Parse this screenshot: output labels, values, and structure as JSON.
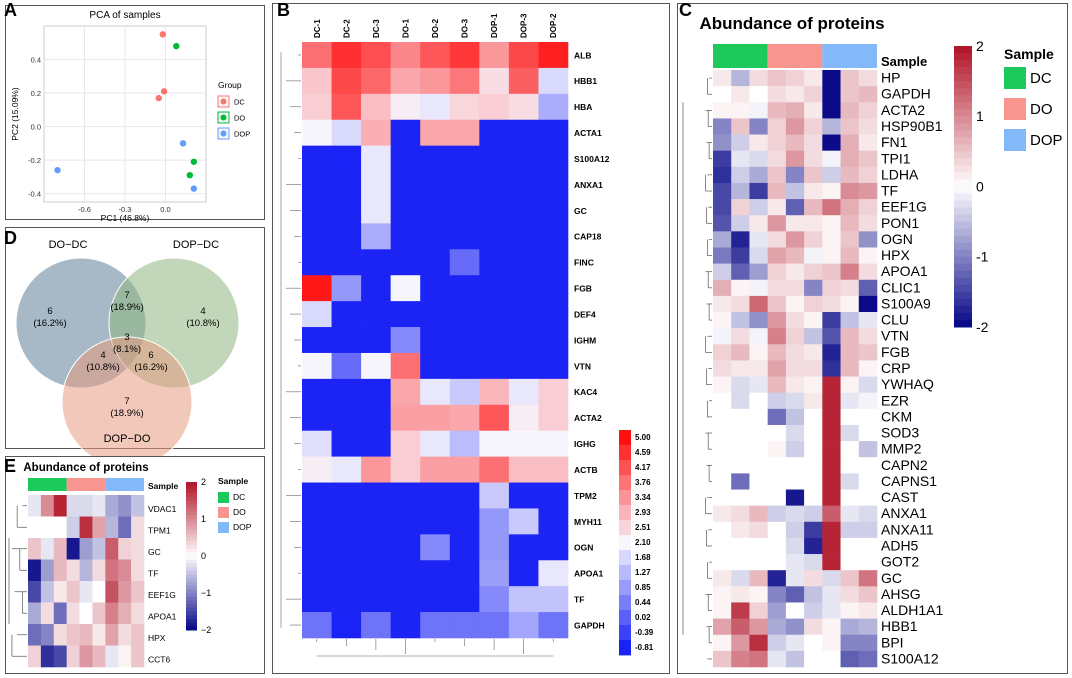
{
  "panel_labels": {
    "a": "A",
    "b": "B",
    "c": "C",
    "d": "D",
    "e": "E"
  },
  "chart_data": [
    {
      "id": "A",
      "type": "scatter",
      "title": "PCA of samples",
      "xlabel": "PC1 (46.8%)",
      "ylabel": "PC2 (15.09%)",
      "xlim": [
        -0.9,
        0.3
      ],
      "ylim": [
        -0.45,
        0.6
      ],
      "xticks": [
        -0.6,
        -0.3,
        0.0
      ],
      "xtick_labels": [
        "-0.6",
        "-0.3",
        "0.0"
      ],
      "yticks": [
        -0.4,
        -0.2,
        0.0,
        0.2,
        0.4
      ],
      "ytick_labels": [
        "-0.4",
        "-0.2",
        "0.0",
        "0.2",
        "0.4"
      ],
      "legend_title": "Group",
      "series": [
        {
          "name": "DC",
          "color": "#f8766d",
          "points": [
            [
              -0.02,
              0.55
            ],
            [
              -0.01,
              0.21
            ],
            [
              -0.05,
              0.17
            ]
          ]
        },
        {
          "name": "DO",
          "color": "#00ba38",
          "points": [
            [
              0.08,
              0.48
            ],
            [
              0.21,
              -0.21
            ],
            [
              0.18,
              -0.29
            ]
          ]
        },
        {
          "name": "DOP",
          "color": "#619cff",
          "points": [
            [
              0.13,
              -0.1
            ],
            [
              0.21,
              -0.37
            ],
            [
              -0.8,
              -0.26
            ]
          ]
        }
      ]
    },
    {
      "id": "B",
      "type": "heatmap",
      "columns": [
        "DC-1",
        "DC-2",
        "DC-3",
        "DO-1",
        "DO-2",
        "DO-3",
        "DOP-1",
        "DOP-3",
        "DOP-2"
      ],
      "rows": [
        "ALB",
        "HBB1",
        "HBA",
        "ACTA1",
        "S100A12",
        "ANXA1",
        "GC",
        "CAP18",
        "FINC",
        "FGB",
        "DEF4",
        "IGHM",
        "VTN",
        "KAC4",
        "ACTA2",
        "IGHG",
        "ACTB",
        "TPM2",
        "MYH11",
        "OGN",
        "APOA1",
        "TF",
        "GAPDH"
      ],
      "values": [
        [
          3.8,
          4.6,
          4.2,
          3.5,
          4.1,
          4.5,
          3.3,
          4.3,
          4.8
        ],
        [
          2.7,
          4.3,
          3.9,
          3.1,
          3.3,
          3.7,
          2.4,
          4.0,
          1.7
        ],
        [
          2.6,
          4.1,
          2.8,
          2.2,
          1.9,
          2.5,
          2.6,
          2.4,
          1.1
        ],
        [
          2.1,
          1.7,
          3.0,
          -0.8,
          3.1,
          3.1,
          -0.8,
          -0.8,
          -0.8
        ],
        [
          -0.8,
          -0.9,
          1.9,
          -0.8,
          -0.8,
          -0.8,
          -0.8,
          -0.8,
          -0.8
        ],
        [
          -0.8,
          -0.8,
          1.9,
          -0.8,
          -0.8,
          -0.8,
          -0.8,
          -0.8,
          -0.8
        ],
        [
          -0.8,
          -0.8,
          1.9,
          -0.8,
          -0.8,
          -0.8,
          -0.8,
          -0.8,
          -0.8
        ],
        [
          -0.8,
          -0.8,
          1.1,
          -0.8,
          -0.8,
          -0.8,
          -0.8,
          -0.8,
          -0.8
        ],
        [
          -0.8,
          -0.8,
          -0.8,
          -0.8,
          -0.8,
          0.2,
          -0.8,
          -0.8,
          -0.8
        ],
        [
          4.9,
          0.8,
          -0.8,
          2.1,
          -0.8,
          -0.8,
          -0.8,
          -0.8,
          -0.8
        ],
        [
          1.7,
          -0.8,
          -0.8,
          -0.8,
          -0.8,
          -0.8,
          -0.8,
          -0.8,
          -0.8
        ],
        [
          -0.8,
          -0.8,
          -0.8,
          0.6,
          -0.8,
          -0.8,
          -0.8,
          -0.8,
          -0.8
        ],
        [
          2.1,
          0.2,
          2.1,
          3.8,
          -0.8,
          -0.8,
          -0.8,
          -0.8,
          -0.8
        ],
        [
          -0.8,
          -0.8,
          -0.8,
          3.1,
          1.9,
          1.5,
          2.9,
          1.9,
          2.6
        ],
        [
          -0.8,
          -0.8,
          -0.8,
          3.2,
          3.2,
          3.1,
          4.1,
          2.2,
          2.6
        ],
        [
          1.8,
          -0.8,
          -0.8,
          2.6,
          1.9,
          1.3,
          2.1,
          2.1,
          2.1
        ],
        [
          2.2,
          1.9,
          3.3,
          2.6,
          3.2,
          3.2,
          3.8,
          2.8,
          2.8
        ],
        [
          -0.8,
          -0.8,
          -0.8,
          -0.8,
          -0.8,
          -0.8,
          1.5,
          -0.8,
          -0.8
        ],
        [
          -0.8,
          -0.8,
          -0.8,
          -0.8,
          -0.8,
          -0.8,
          0.8,
          1.5,
          -0.8
        ],
        [
          -0.8,
          -0.8,
          -0.8,
          -0.8,
          0.6,
          -0.8,
          0.8,
          -0.8,
          -0.8
        ],
        [
          -0.8,
          -0.8,
          -0.8,
          -0.8,
          -0.8,
          -0.8,
          0.9,
          -0.8,
          1.9
        ],
        [
          -0.8,
          -0.8,
          -0.8,
          -0.8,
          -0.8,
          -0.8,
          0.6,
          1.4,
          1.4
        ],
        [
          0.3,
          -0.9,
          0.3,
          -0.8,
          0.3,
          0.3,
          0.3,
          1.0,
          0.3
        ]
      ],
      "legend_ticks": [
        "5.00",
        "4.59",
        "4.17",
        "3.76",
        "3.34",
        "2.93",
        "2.51",
        "2.10",
        "1.68",
        "1.27",
        "0.85",
        "0.44",
        "0.02",
        "-0.39",
        "-0.81"
      ],
      "range": [
        -0.81,
        5.0
      ]
    },
    {
      "id": "C",
      "type": "heatmap",
      "title": "Abundance of proteins",
      "annotation_label": "Sample",
      "groups": [
        {
          "name": "DC",
          "color": "#1ec95c"
        },
        {
          "name": "DO",
          "color": "#f7958e"
        },
        {
          "name": "DOP",
          "color": "#83b8fb"
        }
      ],
      "legend_title": "Sample",
      "legend_ticks": [
        "2",
        "1",
        "0",
        "-1",
        "-2"
      ],
      "range": [
        -2,
        2
      ],
      "rows": [
        "HP",
        "GAPDH",
        "ACTA2",
        "HSP90B1",
        "FN1",
        "TPI1",
        "LDHA",
        "TF",
        "EEF1G",
        "PON1",
        "OGN",
        "HPX",
        "APOA1",
        "CLIC1",
        "S100A9",
        "CLU",
        "VTN",
        "FGB",
        "CRP",
        "YWHAQ",
        "EZR",
        "CKM",
        "SOD3",
        "MMP2",
        "CAPN2",
        "CAPNS1",
        "CAST",
        "ANXA1",
        "ANXA11",
        "ADH5",
        "GOT2",
        "GC",
        "AHSG",
        "ALDH1A1",
        "HBB1",
        "BPI",
        "S100A12"
      ],
      "values": [
        [
          0.2,
          -0.6,
          0.3,
          0.5,
          0.4,
          0.2,
          -2.0,
          0.5,
          0.3
        ],
        [
          0.0,
          0.2,
          0.0,
          0.3,
          0.2,
          0.4,
          -2.0,
          0.5,
          0.6
        ],
        [
          0.1,
          0.1,
          -0.1,
          0.6,
          0.7,
          0.2,
          -2.0,
          0.6,
          0.4
        ],
        [
          -1.0,
          0.5,
          -1.0,
          0.4,
          0.9,
          0.4,
          -0.6,
          0.5,
          0.3
        ],
        [
          -0.9,
          -0.4,
          0.2,
          0.4,
          0.6,
          0.3,
          -2.0,
          0.7,
          0.2
        ],
        [
          -1.6,
          -0.2,
          -0.3,
          0.3,
          0.9,
          0.3,
          -0.1,
          0.7,
          0.5
        ],
        [
          -1.7,
          -0.4,
          -0.7,
          0.5,
          -1.0,
          0.5,
          -0.4,
          0.6,
          0.4
        ],
        [
          -1.5,
          -0.6,
          -1.6,
          0.6,
          -0.5,
          0.2,
          0.1,
          1.0,
          0.9
        ],
        [
          -1.5,
          0.4,
          -0.4,
          0.2,
          -1.3,
          0.6,
          1.2,
          0.7,
          0.4
        ],
        [
          -1.4,
          -0.4,
          0.2,
          0.9,
          0.2,
          0.2,
          0.1,
          0.6,
          0.3
        ],
        [
          -0.7,
          -1.8,
          -0.2,
          0.3,
          0.9,
          0.4,
          0.1,
          0.5,
          -0.9
        ],
        [
          -1.1,
          -1.6,
          -0.3,
          0.8,
          0.6,
          -0.1,
          0.1,
          0.6,
          0.1
        ],
        [
          -0.4,
          -1.3,
          -0.8,
          0.4,
          0.2,
          0.4,
          0.5,
          1.1,
          0.3
        ],
        [
          0.7,
          0.1,
          -0.1,
          0.3,
          0.3,
          -1.0,
          0.4,
          0.3,
          -1.3
        ],
        [
          0.2,
          0.3,
          1.3,
          0.5,
          0.1,
          0.4,
          0.3,
          0.1,
          -2.0
        ],
        [
          0.1,
          -0.5,
          -0.9,
          0.9,
          0.3,
          0.1,
          -1.6,
          -0.5,
          -0.2
        ],
        [
          -0.1,
          0.3,
          -0.1,
          1.1,
          0.4,
          -0.5,
          -1.4,
          0.6,
          0.3
        ],
        [
          0.4,
          0.6,
          0.1,
          0.6,
          0.3,
          0.2,
          -1.8,
          0.6,
          0.5
        ],
        [
          0.3,
          0.2,
          0.2,
          0.8,
          0.3,
          0.3,
          -1.7,
          0.6,
          0.1
        ],
        [
          0.1,
          -0.3,
          -0.2,
          0.6,
          0.2,
          0.1,
          1.9,
          0.1,
          -0.3
        ],
        [
          0.0,
          -0.3,
          0.0,
          -0.4,
          -0.3,
          0.2,
          1.9,
          -0.2,
          -0.1
        ],
        [
          0.0,
          0.0,
          0.0,
          -1.2,
          -0.5,
          0.0,
          1.9,
          0.0,
          0.0
        ],
        [
          0.0,
          0.0,
          0.0,
          0.0,
          -0.3,
          0.0,
          1.9,
          -0.3,
          0.0
        ],
        [
          0.0,
          0.0,
          0.0,
          0.1,
          -0.4,
          0.0,
          1.9,
          0.0,
          -0.5
        ],
        [
          0.0,
          0.0,
          0.0,
          0.0,
          0.0,
          0.0,
          1.9,
          0.0,
          0.0
        ],
        [
          0.0,
          -1.2,
          0.0,
          0.0,
          0.0,
          0.0,
          1.9,
          -0.3,
          0.0
        ],
        [
          0.0,
          0.0,
          0.0,
          0.0,
          -1.9,
          0.0,
          1.9,
          0.0,
          0.0
        ],
        [
          0.2,
          0.3,
          0.6,
          -0.4,
          -0.3,
          -0.4,
          1.4,
          -0.2,
          -0.3
        ],
        [
          0.0,
          0.2,
          0.3,
          0.0,
          -0.4,
          -1.6,
          1.9,
          -0.4,
          -0.4
        ],
        [
          0.0,
          0.0,
          0.0,
          0.0,
          -0.3,
          -1.8,
          1.9,
          0.0,
          0.0
        ],
        [
          0.0,
          0.0,
          0.0,
          0.0,
          -0.2,
          -0.3,
          1.9,
          0.0,
          0.0
        ],
        [
          0.2,
          -0.3,
          0.6,
          -1.8,
          -0.2,
          0.3,
          -0.3,
          0.5,
          1.2
        ],
        [
          0.1,
          0.2,
          0.1,
          -1.0,
          -1.3,
          -0.5,
          -0.2,
          0.3,
          0.5
        ],
        [
          0.1,
          1.7,
          0.4,
          -0.8,
          0.0,
          -0.4,
          -0.2,
          0.1,
          0.2
        ],
        [
          0.8,
          1.4,
          0.9,
          -0.7,
          -0.9,
          0.3,
          0.1,
          -0.7,
          -0.6
        ],
        [
          0.1,
          0.9,
          1.8,
          -0.4,
          -0.2,
          0.0,
          0.1,
          -1.0,
          -1.0
        ],
        [
          0.5,
          1.1,
          1.2,
          -0.2,
          -0.5,
          0.0,
          0.0,
          -1.3,
          -1.2
        ]
      ]
    },
    {
      "id": "D",
      "type": "venn",
      "sets": [
        {
          "name": "DO−DC",
          "color": "#5e7f98"
        },
        {
          "name": "DOP−DC",
          "color": "#8fb77f"
        },
        {
          "name": "DOP−DO",
          "color": "#e59a82"
        }
      ],
      "regions": [
        {
          "sets": [
            "DO−DC"
          ],
          "count": "6",
          "percent": "(16.2%)"
        },
        {
          "sets": [
            "DOP−DC"
          ],
          "count": "4",
          "percent": "(10.8%)"
        },
        {
          "sets": [
            "DOP−DO"
          ],
          "count": "7",
          "percent": "(18.9%)"
        },
        {
          "sets": [
            "DO−DC",
            "DOP−DC"
          ],
          "count": "7",
          "percent": "(18.9%)"
        },
        {
          "sets": [
            "DO−DC",
            "DOP−DO"
          ],
          "count": "4",
          "percent": "(10.8%)"
        },
        {
          "sets": [
            "DOP−DC",
            "DOP−DO"
          ],
          "count": "6",
          "percent": "(16.2%)"
        },
        {
          "sets": [
            "DO−DC",
            "DOP−DC",
            "DOP−DO"
          ],
          "count": "3",
          "percent": "(8.1%)"
        }
      ]
    },
    {
      "id": "E",
      "type": "heatmap",
      "title": "Abundance of proteins",
      "annotation_label": "Sample",
      "groups": [
        {
          "name": "DC",
          "color": "#1ec95c"
        },
        {
          "name": "DO",
          "color": "#f7958e"
        },
        {
          "name": "DOP",
          "color": "#83b8fb"
        }
      ],
      "legend_title": "Sample",
      "legend_ticks": [
        "2",
        "1",
        "0",
        "−1",
        "−2"
      ],
      "range": [
        -2,
        2
      ],
      "rows": [
        "VDAC1",
        "TPM1",
        "GC",
        "TF",
        "EEF1G",
        "APOA1",
        "HPX",
        "CCT6"
      ],
      "values": [
        [
          -0.2,
          1.0,
          1.9,
          -0.3,
          -0.3,
          -0.2,
          -0.7,
          -0.9,
          -0.5
        ],
        [
          0.0,
          0.0,
          0.0,
          -0.4,
          1.8,
          0.8,
          -0.6,
          -1.2,
          0.3
        ],
        [
          0.5,
          -0.2,
          0.6,
          -1.9,
          -0.8,
          -0.5,
          1.4,
          0.4,
          0.3
        ],
        [
          -1.9,
          -0.8,
          0.6,
          0.3,
          -0.6,
          0.3,
          1.2,
          1.0,
          0.3
        ],
        [
          -1.5,
          -0.5,
          0.2,
          0.5,
          -0.2,
          0.0,
          1.5,
          0.9,
          0.5
        ],
        [
          -0.7,
          0.3,
          -1.2,
          0.3,
          0.0,
          0.5,
          1.1,
          0.7,
          0.3
        ],
        [
          -1.2,
          -1.0,
          0.3,
          0.5,
          0.6,
          0.2,
          0.8,
          0.3,
          0.5
        ],
        [
          0.4,
          -1.7,
          -1.5,
          0.4,
          0.9,
          0.6,
          -0.2,
          0.1,
          0.5
        ]
      ]
    }
  ]
}
